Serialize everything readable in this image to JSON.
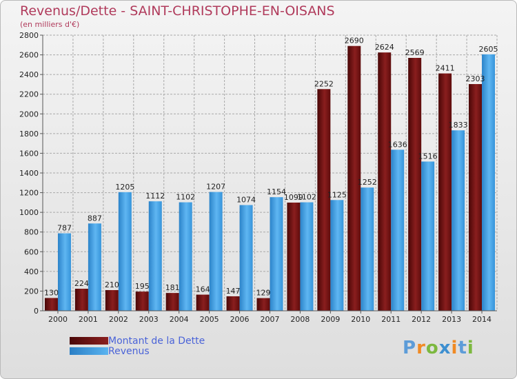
{
  "chart_data": {
    "type": "bar",
    "title": "Revenus/Dette - SAINT-CHRISTOPHE-EN-OISANS",
    "subtitle": "(en milliers d'€)",
    "categories": [
      "2000",
      "2001",
      "2002",
      "2003",
      "2004",
      "2005",
      "2006",
      "2007",
      "2008",
      "2009",
      "2010",
      "2011",
      "2012",
      "2013",
      "2014"
    ],
    "series": [
      {
        "name": "Montant de la Dette",
        "color": "#7a1515",
        "values": [
          130,
          224,
          210,
          195,
          181,
          164,
          147,
          129,
          1099,
          2252,
          2690,
          2624,
          2569,
          2411,
          2303
        ]
      },
      {
        "name": "Revenus",
        "color": "#3a9ce3",
        "values": [
          787,
          887,
          1205,
          1112,
          1102,
          1207,
          1074,
          1154,
          1102,
          1125,
          1252,
          1636,
          1516,
          1833,
          2605
        ]
      }
    ],
    "data_labels": {
      "series_0": [
        "130",
        "224",
        "210",
        "195",
        "181",
        "164",
        "147",
        "129",
        "1099",
        "2252",
        "2690",
        "2624",
        "2569",
        "2411",
        "2303"
      ],
      "series_1": [
        "787",
        "887",
        "1205",
        "1112",
        "1102",
        "1207",
        "1074",
        "1154",
        "1102",
        "1125",
        "1252",
        "1636",
        "1516",
        "1833",
        "2605"
      ]
    },
    "yticks": [
      "0",
      "200",
      "400",
      "600",
      "800",
      "1000",
      "1200",
      "1400",
      "1600",
      "1800",
      "2000",
      "2200",
      "2400",
      "2600",
      "2800"
    ],
    "ylim": [
      0,
      2800
    ],
    "grid": true,
    "legend_position": "bottom-left"
  },
  "brand": {
    "logo_letters": [
      "P",
      "r",
      "o",
      "x",
      "i",
      "t",
      "i"
    ],
    "logo_colors": [
      "#5d9cd8",
      "#f08a24",
      "#7cb83f",
      "#3d8fd0",
      "#f08a24",
      "#5d9cd8",
      "#7cb83f"
    ]
  }
}
